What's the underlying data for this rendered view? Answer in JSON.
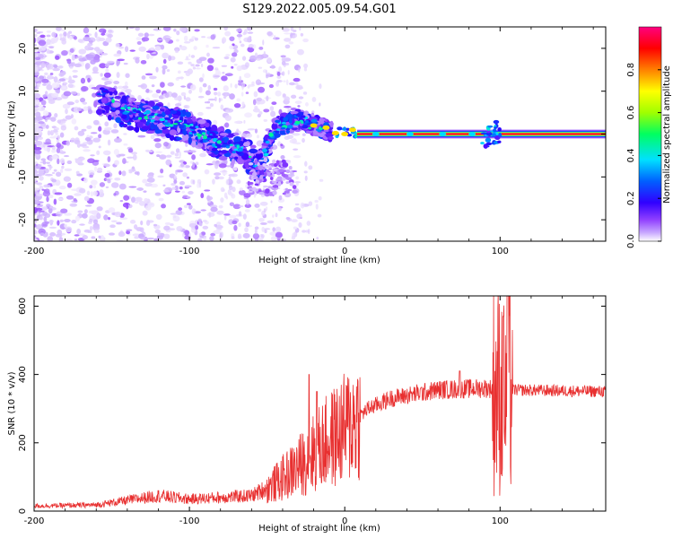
{
  "title": "S129.2022.005.09.54.G01",
  "chart_data": [
    {
      "type": "heatmap",
      "panel": "spectrogram",
      "xlabel": "Height of straight line (km)",
      "ylabel": "Frequency (Hz)",
      "xlim": [
        -200,
        168
      ],
      "ylim": [
        -25,
        25
      ],
      "xticks": [
        -200,
        -100,
        0,
        100
      ],
      "yticks": [
        -20,
        -10,
        0,
        10,
        20
      ],
      "colorbar": {
        "label": "Normalized spectral amplitude",
        "range": [
          0,
          1
        ],
        "ticks": [
          0.0,
          0.2,
          0.4,
          0.6,
          0.8
        ],
        "colormap": [
          "#ffffff",
          "#c8a8ff",
          "#9040ff",
          "#3000ff",
          "#0060ff",
          "#00e0ff",
          "#00ff60",
          "#a0ff00",
          "#ffff00",
          "#ff8000",
          "#ff0000",
          "#ff0080"
        ]
      },
      "ridge": [
        {
          "h": -157,
          "f": 8.5
        },
        {
          "h": -140,
          "f": 5
        },
        {
          "h": -120,
          "f": 3.5
        },
        {
          "h": -100,
          "f": 1.5
        },
        {
          "h": -85,
          "f": -1.5
        },
        {
          "h": -65,
          "f": -4
        },
        {
          "h": -55,
          "f": -8
        },
        {
          "h": -45,
          "f": 1.5
        },
        {
          "h": -30,
          "f": 3.5
        },
        {
          "h": -15,
          "f": 1.5
        },
        {
          "h": -5,
          "f": 0
        },
        {
          "h": 8,
          "f": 0.5
        },
        {
          "h": 168,
          "f": 0
        }
      ]
    },
    {
      "type": "line",
      "panel": "snr",
      "xlabel": "Height of straight line (km)",
      "ylabel": "SNR (10 * v/v)",
      "xlim": [
        -200,
        168
      ],
      "ylim": [
        0,
        630
      ],
      "xticks": [
        -200,
        -100,
        0,
        100
      ],
      "yticks": [
        0,
        200,
        400,
        600
      ],
      "color": "#e83030",
      "envelope": [
        {
          "h": -200,
          "snr": 15
        },
        {
          "h": -160,
          "snr": 18
        },
        {
          "h": -120,
          "snr": 45
        },
        {
          "h": -100,
          "snr": 35
        },
        {
          "h": -60,
          "snr": 45
        },
        {
          "h": -45,
          "snr": 80
        },
        {
          "h": -30,
          "snr": 130
        },
        {
          "h": -15,
          "snr": 190
        },
        {
          "h": 0,
          "snr": 240
        },
        {
          "h": 15,
          "snr": 300
        },
        {
          "h": 30,
          "snr": 330
        },
        {
          "h": 60,
          "snr": 355
        },
        {
          "h": 90,
          "snr": 360
        },
        {
          "h": 105,
          "snr": 355
        },
        {
          "h": 168,
          "snr": 350
        }
      ],
      "spikes": [
        {
          "h": -23,
          "snr": 400
        },
        {
          "h": -18,
          "snr": 350
        },
        {
          "h": 74,
          "snr": 410
        },
        {
          "h": 102,
          "snr": 570
        },
        {
          "h": 105,
          "snr": 630
        }
      ]
    }
  ]
}
